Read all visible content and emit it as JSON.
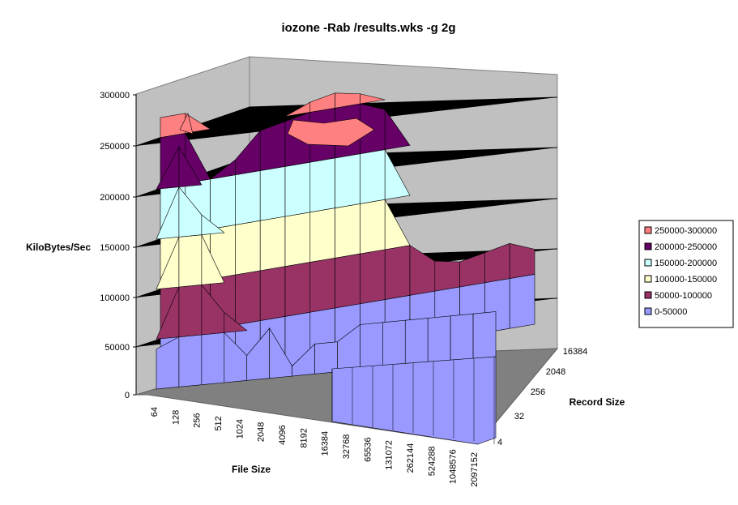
{
  "chart_data": {
    "type": "surface-3d",
    "title": "iozone -Rab /results.wks -g 2g",
    "zlabel": "KiloBytes/Sec",
    "xlabel": "File Size",
    "ylabel": "Record Size",
    "zlim": [
      0,
      300000
    ],
    "z_ticks": [
      "0",
      "50000",
      "100000",
      "150000",
      "200000",
      "250000",
      "300000"
    ],
    "x_ticks": [
      "64",
      "128",
      "256",
      "512",
      "1024",
      "2048",
      "4096",
      "8192",
      "16384",
      "32768",
      "65536",
      "131072",
      "262144",
      "524288",
      "1048576",
      "2097152"
    ],
    "y_ticks": [
      "4",
      "32",
      "256",
      "2048",
      "16384"
    ],
    "legend": [
      {
        "label": "250000-300000",
        "color": "#ff8080"
      },
      {
        "label": "200000-250000",
        "color": "#660066"
      },
      {
        "label": "150000-200000",
        "color": "#ccffff"
      },
      {
        "label": "100000-150000",
        "color": "#ffffcc"
      },
      {
        "label": "50000-100000",
        "color": "#993366"
      },
      {
        "label": "0-50000",
        "color": "#9999ff"
      }
    ],
    "front_profile_values": [
      40000,
      240000,
      170000,
      70000,
      25000,
      50000,
      10000,
      30000,
      30000,
      45000,
      45000,
      45000,
      45000,
      45000,
      45000,
      45000
    ],
    "peak_values": [
      270000,
      270000,
      200000,
      215000,
      240000,
      245000,
      260000,
      265000,
      260000,
      240000,
      100000,
      80000,
      75000,
      80000,
      85000,
      75000
    ]
  }
}
